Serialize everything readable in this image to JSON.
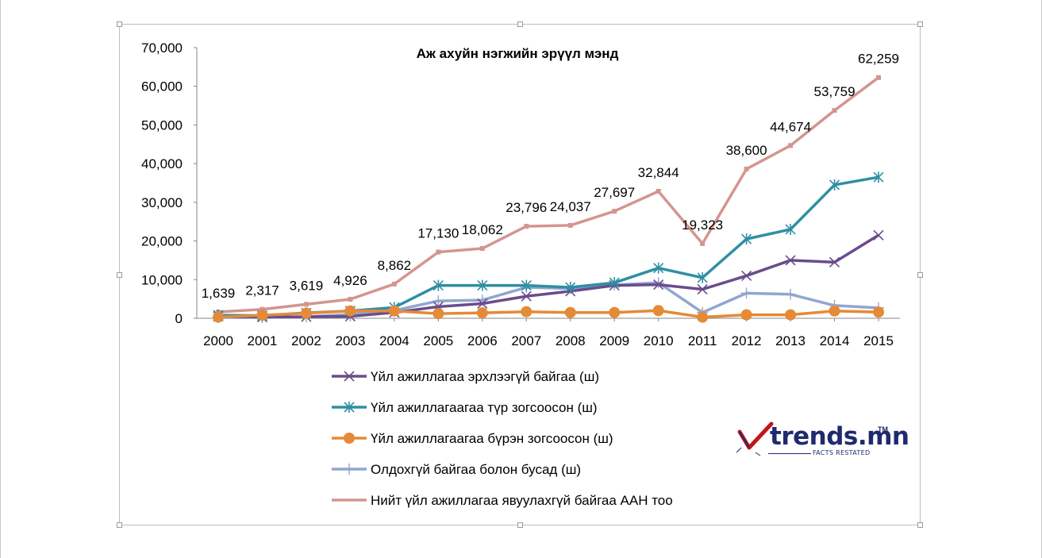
{
  "chart_data": {
    "type": "line",
    "title": "Аж ахуйн нэгжийн эрүүл мэнд",
    "x": [
      "2000",
      "2001",
      "2002",
      "2003",
      "2004",
      "2005",
      "2006",
      "2007",
      "2008",
      "2009",
      "2010",
      "2011",
      "2012",
      "2013",
      "2014",
      "2015"
    ],
    "ylim": [
      0,
      70000
    ],
    "yticks": [
      "0",
      "10,000",
      "20,000",
      "30,000",
      "40,000",
      "50,000",
      "60,000",
      "70,000"
    ],
    "grid": false,
    "legend_position": "bottom",
    "series": [
      {
        "name": "Үйл ажиллагаа эрхлээгүй байгаа (ш)",
        "color": "#6a4c8c",
        "marker": "x",
        "values": [
          500,
          300,
          400,
          500,
          1500,
          3000,
          3800,
          5700,
          7000,
          8500,
          8700,
          7500,
          11000,
          15000,
          14500,
          21500
        ]
      },
      {
        "name": "Үйл ажиллагаагаа түр зогсоосон (ш)",
        "color": "#2f8fa3",
        "marker": "star",
        "values": [
          800,
          700,
          1400,
          1900,
          2800,
          8500,
          8500,
          8500,
          8000,
          9200,
          13000,
          10500,
          20500,
          23000,
          34500,
          36500
        ]
      },
      {
        "name": "Үйл ажиллагаагаа бүрэн зогсоосон (ш)",
        "color": "#e58a36",
        "marker": "circle",
        "values": [
          300,
          800,
          1300,
          1900,
          1900,
          1200,
          1400,
          1700,
          1500,
          1500,
          2000,
          300,
          900,
          900,
          1900,
          1600
        ]
      },
      {
        "name": "Олдохгүй байгаа болон бусад (ш)",
        "color": "#91a6cf",
        "marker": "plus",
        "values": [
          200,
          200,
          400,
          1000,
          2000,
          4500,
          4700,
          8000,
          7700,
          8600,
          9200,
          1500,
          6500,
          6200,
          3300,
          2700
        ]
      },
      {
        "name": "Нийт үйл ажиллагаа явуулахгүй байгаа ААН тоо",
        "color": "#d4958f",
        "marker": "square",
        "values": [
          1639,
          2317,
          3619,
          4926,
          8862,
          17130,
          18062,
          23796,
          24037,
          27697,
          32844,
          19323,
          38600,
          44674,
          53759,
          62259
        ],
        "data_labels": [
          "1,639",
          "2,317",
          "3,619",
          "4,926",
          "8,862",
          "17,130",
          "18,062",
          "23,796",
          "24,037",
          "27,697",
          "32,844",
          "19,323",
          "38,600",
          "44,674",
          "53,759",
          "62,259"
        ]
      }
    ]
  },
  "logo": {
    "text": "trends.mn",
    "tm": "TM",
    "tagline": "FACTS RESTATED",
    "accent_color": "#c0161c",
    "text_color": "#1f2a6e"
  }
}
